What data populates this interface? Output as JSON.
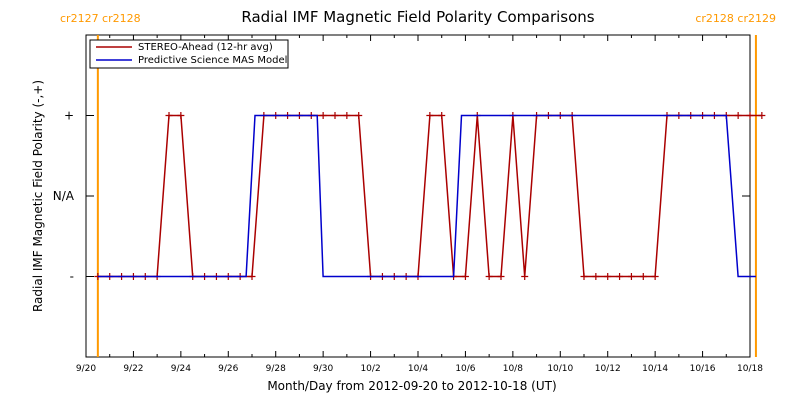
{
  "chart_data": {
    "type": "line",
    "title": "Radial IMF Magnetic Field Polarity Comparisons",
    "xlabel": "Month/Day from 2012-09-20 to 2012-10-18 (UT)",
    "ylabel": "Radial IMF Magnetic Field Polarity (-,+)",
    "xlim": [
      "2012-09-20",
      "2012-10-18"
    ],
    "ylim": [
      -2,
      2
    ],
    "x_tick_labels": [
      "9/20",
      "9/22",
      "9/24",
      "9/26",
      "9/28",
      "9/30",
      "10/2",
      "10/4",
      "10/6",
      "10/8",
      "10/10",
      "10/12",
      "10/14",
      "10/16",
      "10/18"
    ],
    "y_ticks": [
      {
        "value": 1,
        "label": "+"
      },
      {
        "value": 0,
        "label": "N/A"
      },
      {
        "value": -1,
        "label": "-"
      }
    ],
    "rotation_markers": [
      {
        "date": "2012-09-20T12:00",
        "label": "cr2127 cr2128"
      },
      {
        "date": "2012-10-18T06:00",
        "label": "cr2128 cr2129"
      }
    ],
    "legend": {
      "position": "top-left"
    },
    "series": [
      {
        "name": "STEREO-Ahead (12-hr avg)",
        "color": "#aa0000",
        "markers": "plus",
        "points": [
          [
            "2012-09-20T12:00",
            -1
          ],
          [
            "2012-09-21T00:00",
            -1
          ],
          [
            "2012-09-21T12:00",
            -1
          ],
          [
            "2012-09-22T00:00",
            -1
          ],
          [
            "2012-09-22T12:00",
            -1
          ],
          [
            "2012-09-23T00:00",
            -1
          ],
          [
            "2012-09-23T12:00",
            1
          ],
          [
            "2012-09-24T00:00",
            1
          ],
          [
            "2012-09-24T12:00",
            -1
          ],
          [
            "2012-09-25T00:00",
            -1
          ],
          [
            "2012-09-25T12:00",
            -1
          ],
          [
            "2012-09-26T00:00",
            -1
          ],
          [
            "2012-09-26T12:00",
            -1
          ],
          [
            "2012-09-27T00:00",
            -1
          ],
          [
            "2012-09-27T12:00",
            1
          ],
          [
            "2012-09-28T00:00",
            1
          ],
          [
            "2012-09-28T12:00",
            1
          ],
          [
            "2012-09-29T00:00",
            1
          ],
          [
            "2012-09-29T12:00",
            1
          ],
          [
            "2012-09-30T00:00",
            1
          ],
          [
            "2012-09-30T12:00",
            1
          ],
          [
            "2012-10-01T00:00",
            1
          ],
          [
            "2012-10-01T12:00",
            1
          ],
          [
            "2012-10-02T00:00",
            -1
          ],
          [
            "2012-10-02T12:00",
            -1
          ],
          [
            "2012-10-03T00:00",
            -1
          ],
          [
            "2012-10-03T12:00",
            -1
          ],
          [
            "2012-10-04T00:00",
            -1
          ],
          [
            "2012-10-04T12:00",
            1
          ],
          [
            "2012-10-05T00:00",
            1
          ],
          [
            "2012-10-05T12:00",
            -1
          ],
          [
            "2012-10-06T00:00",
            -1
          ],
          [
            "2012-10-06T12:00",
            1
          ],
          [
            "2012-10-07T00:00",
            -1
          ],
          [
            "2012-10-07T12:00",
            -1
          ],
          [
            "2012-10-08T00:00",
            1
          ],
          [
            "2012-10-08T12:00",
            -1
          ],
          [
            "2012-10-09T00:00",
            1
          ],
          [
            "2012-10-09T12:00",
            1
          ],
          [
            "2012-10-10T00:00",
            1
          ],
          [
            "2012-10-10T12:00",
            1
          ],
          [
            "2012-10-11T00:00",
            -1
          ],
          [
            "2012-10-11T12:00",
            -1
          ],
          [
            "2012-10-12T00:00",
            -1
          ],
          [
            "2012-10-12T12:00",
            -1
          ],
          [
            "2012-10-13T00:00",
            -1
          ],
          [
            "2012-10-13T12:00",
            -1
          ],
          [
            "2012-10-14T00:00",
            -1
          ],
          [
            "2012-10-14T12:00",
            1
          ],
          [
            "2012-10-15T00:00",
            1
          ],
          [
            "2012-10-15T12:00",
            1
          ],
          [
            "2012-10-16T00:00",
            1
          ],
          [
            "2012-10-16T12:00",
            1
          ],
          [
            "2012-10-17T00:00",
            1
          ],
          [
            "2012-10-17T12:00",
            1
          ],
          [
            "2012-10-18T00:00",
            1
          ],
          [
            "2012-10-18T12:00",
            1
          ]
        ]
      },
      {
        "name": "Predictive Science MAS Model",
        "color": "#0000cc",
        "markers": "none",
        "points": [
          [
            "2012-09-20T12:00",
            -1
          ],
          [
            "2012-09-26T18:00",
            -1
          ],
          [
            "2012-09-27T03:00",
            1
          ],
          [
            "2012-09-29T18:00",
            1
          ],
          [
            "2012-09-30T00:00",
            -1
          ],
          [
            "2012-10-05T12:00",
            -1
          ],
          [
            "2012-10-05T20:00",
            1
          ],
          [
            "2012-10-17T00:00",
            1
          ],
          [
            "2012-10-17T12:00",
            -1
          ],
          [
            "2012-10-18T06:00",
            -1
          ]
        ]
      }
    ]
  }
}
